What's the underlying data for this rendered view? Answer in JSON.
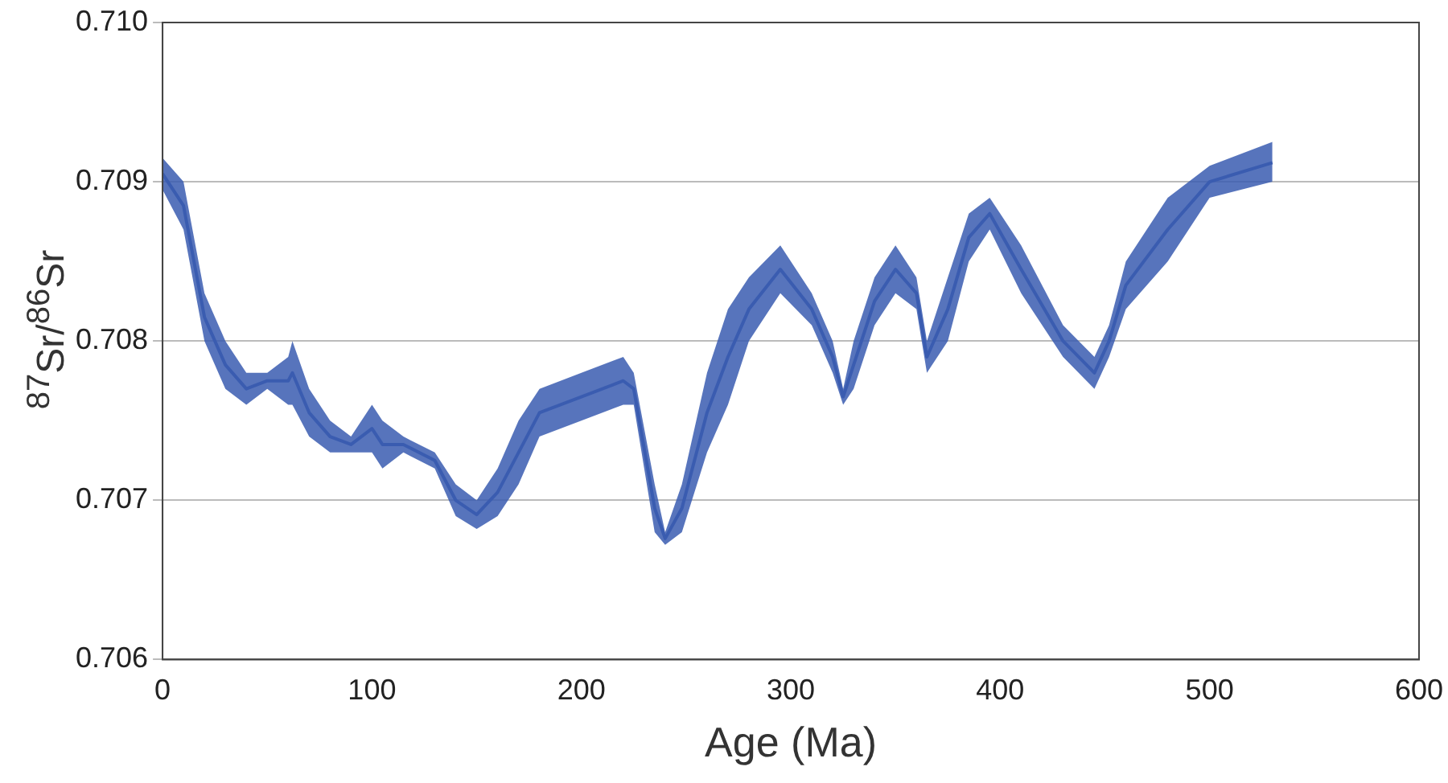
{
  "chart_data": {
    "type": "line",
    "xlabel": "Age (Ma)",
    "ylabel": "$^{87}$Sr/$^{86}$Sr",
    "xlim": [
      0,
      600
    ],
    "xticks": [
      0,
      100,
      200,
      300,
      400,
      500,
      600
    ],
    "ylim": [
      0.706,
      0.71
    ],
    "yticks": [
      {
        "value": 0.706,
        "label": "0.706"
      },
      0.707,
      0.708,
      0.709,
      {
        "value": 0.71,
        "label": "0.710"
      }
    ],
    "grid": "y",
    "legend": false,
    "marker": "none",
    "series": [
      {
        "color": "#3a5cb0",
        "x": [
          0,
          10,
          20,
          30,
          40,
          50,
          60,
          62,
          70,
          80,
          90,
          100,
          105,
          115,
          130,
          140,
          150,
          160,
          170,
          180,
          200,
          220,
          225,
          235,
          240,
          248,
          260,
          270,
          280,
          295,
          310,
          320,
          325,
          330,
          340,
          350,
          360,
          365,
          375,
          385,
          395,
          410,
          430,
          445,
          452,
          460,
          480,
          500,
          530
        ],
        "values": [
          0.70905,
          0.70885,
          0.70815,
          0.70785,
          0.7077,
          0.70775,
          0.70775,
          0.7078,
          0.70755,
          0.7074,
          0.70735,
          0.70745,
          0.70735,
          0.70735,
          0.70725,
          0.707,
          0.70691,
          0.70705,
          0.7073,
          0.70755,
          0.70765,
          0.70775,
          0.7077,
          0.70695,
          0.70676,
          0.70695,
          0.70755,
          0.7079,
          0.7082,
          0.70845,
          0.7082,
          0.7079,
          0.70765,
          0.70785,
          0.70825,
          0.70845,
          0.7083,
          0.7079,
          0.7082,
          0.70865,
          0.7088,
          0.70845,
          0.708,
          0.7078,
          0.708,
          0.70835,
          0.7087,
          0.709,
          0.70912
        ],
        "lower": [
          0.70895,
          0.7087,
          0.708,
          0.7077,
          0.7076,
          0.7077,
          0.7076,
          0.7076,
          0.7074,
          0.7073,
          0.7073,
          0.7073,
          0.7072,
          0.7073,
          0.7072,
          0.7069,
          0.70682,
          0.7069,
          0.7071,
          0.7074,
          0.7075,
          0.7076,
          0.7076,
          0.7068,
          0.70672,
          0.7068,
          0.7073,
          0.7076,
          0.708,
          0.7083,
          0.7081,
          0.7078,
          0.7076,
          0.7077,
          0.7081,
          0.7083,
          0.7082,
          0.7078,
          0.708,
          0.7085,
          0.7087,
          0.7083,
          0.7079,
          0.7077,
          0.7079,
          0.7082,
          0.7085,
          0.7089,
          0.709
        ],
        "upper": [
          0.70915,
          0.709,
          0.7083,
          0.708,
          0.7078,
          0.7078,
          0.7079,
          0.708,
          0.7077,
          0.7075,
          0.7074,
          0.7076,
          0.7075,
          0.7074,
          0.7073,
          0.7071,
          0.707,
          0.7072,
          0.7075,
          0.7077,
          0.7078,
          0.7079,
          0.7078,
          0.7071,
          0.7068,
          0.7071,
          0.7078,
          0.7082,
          0.7084,
          0.7086,
          0.7083,
          0.708,
          0.7077,
          0.708,
          0.7084,
          0.7086,
          0.7084,
          0.708,
          0.7084,
          0.7088,
          0.7089,
          0.7086,
          0.7081,
          0.7079,
          0.7081,
          0.7085,
          0.7089,
          0.7091,
          0.70925
        ]
      }
    ]
  }
}
